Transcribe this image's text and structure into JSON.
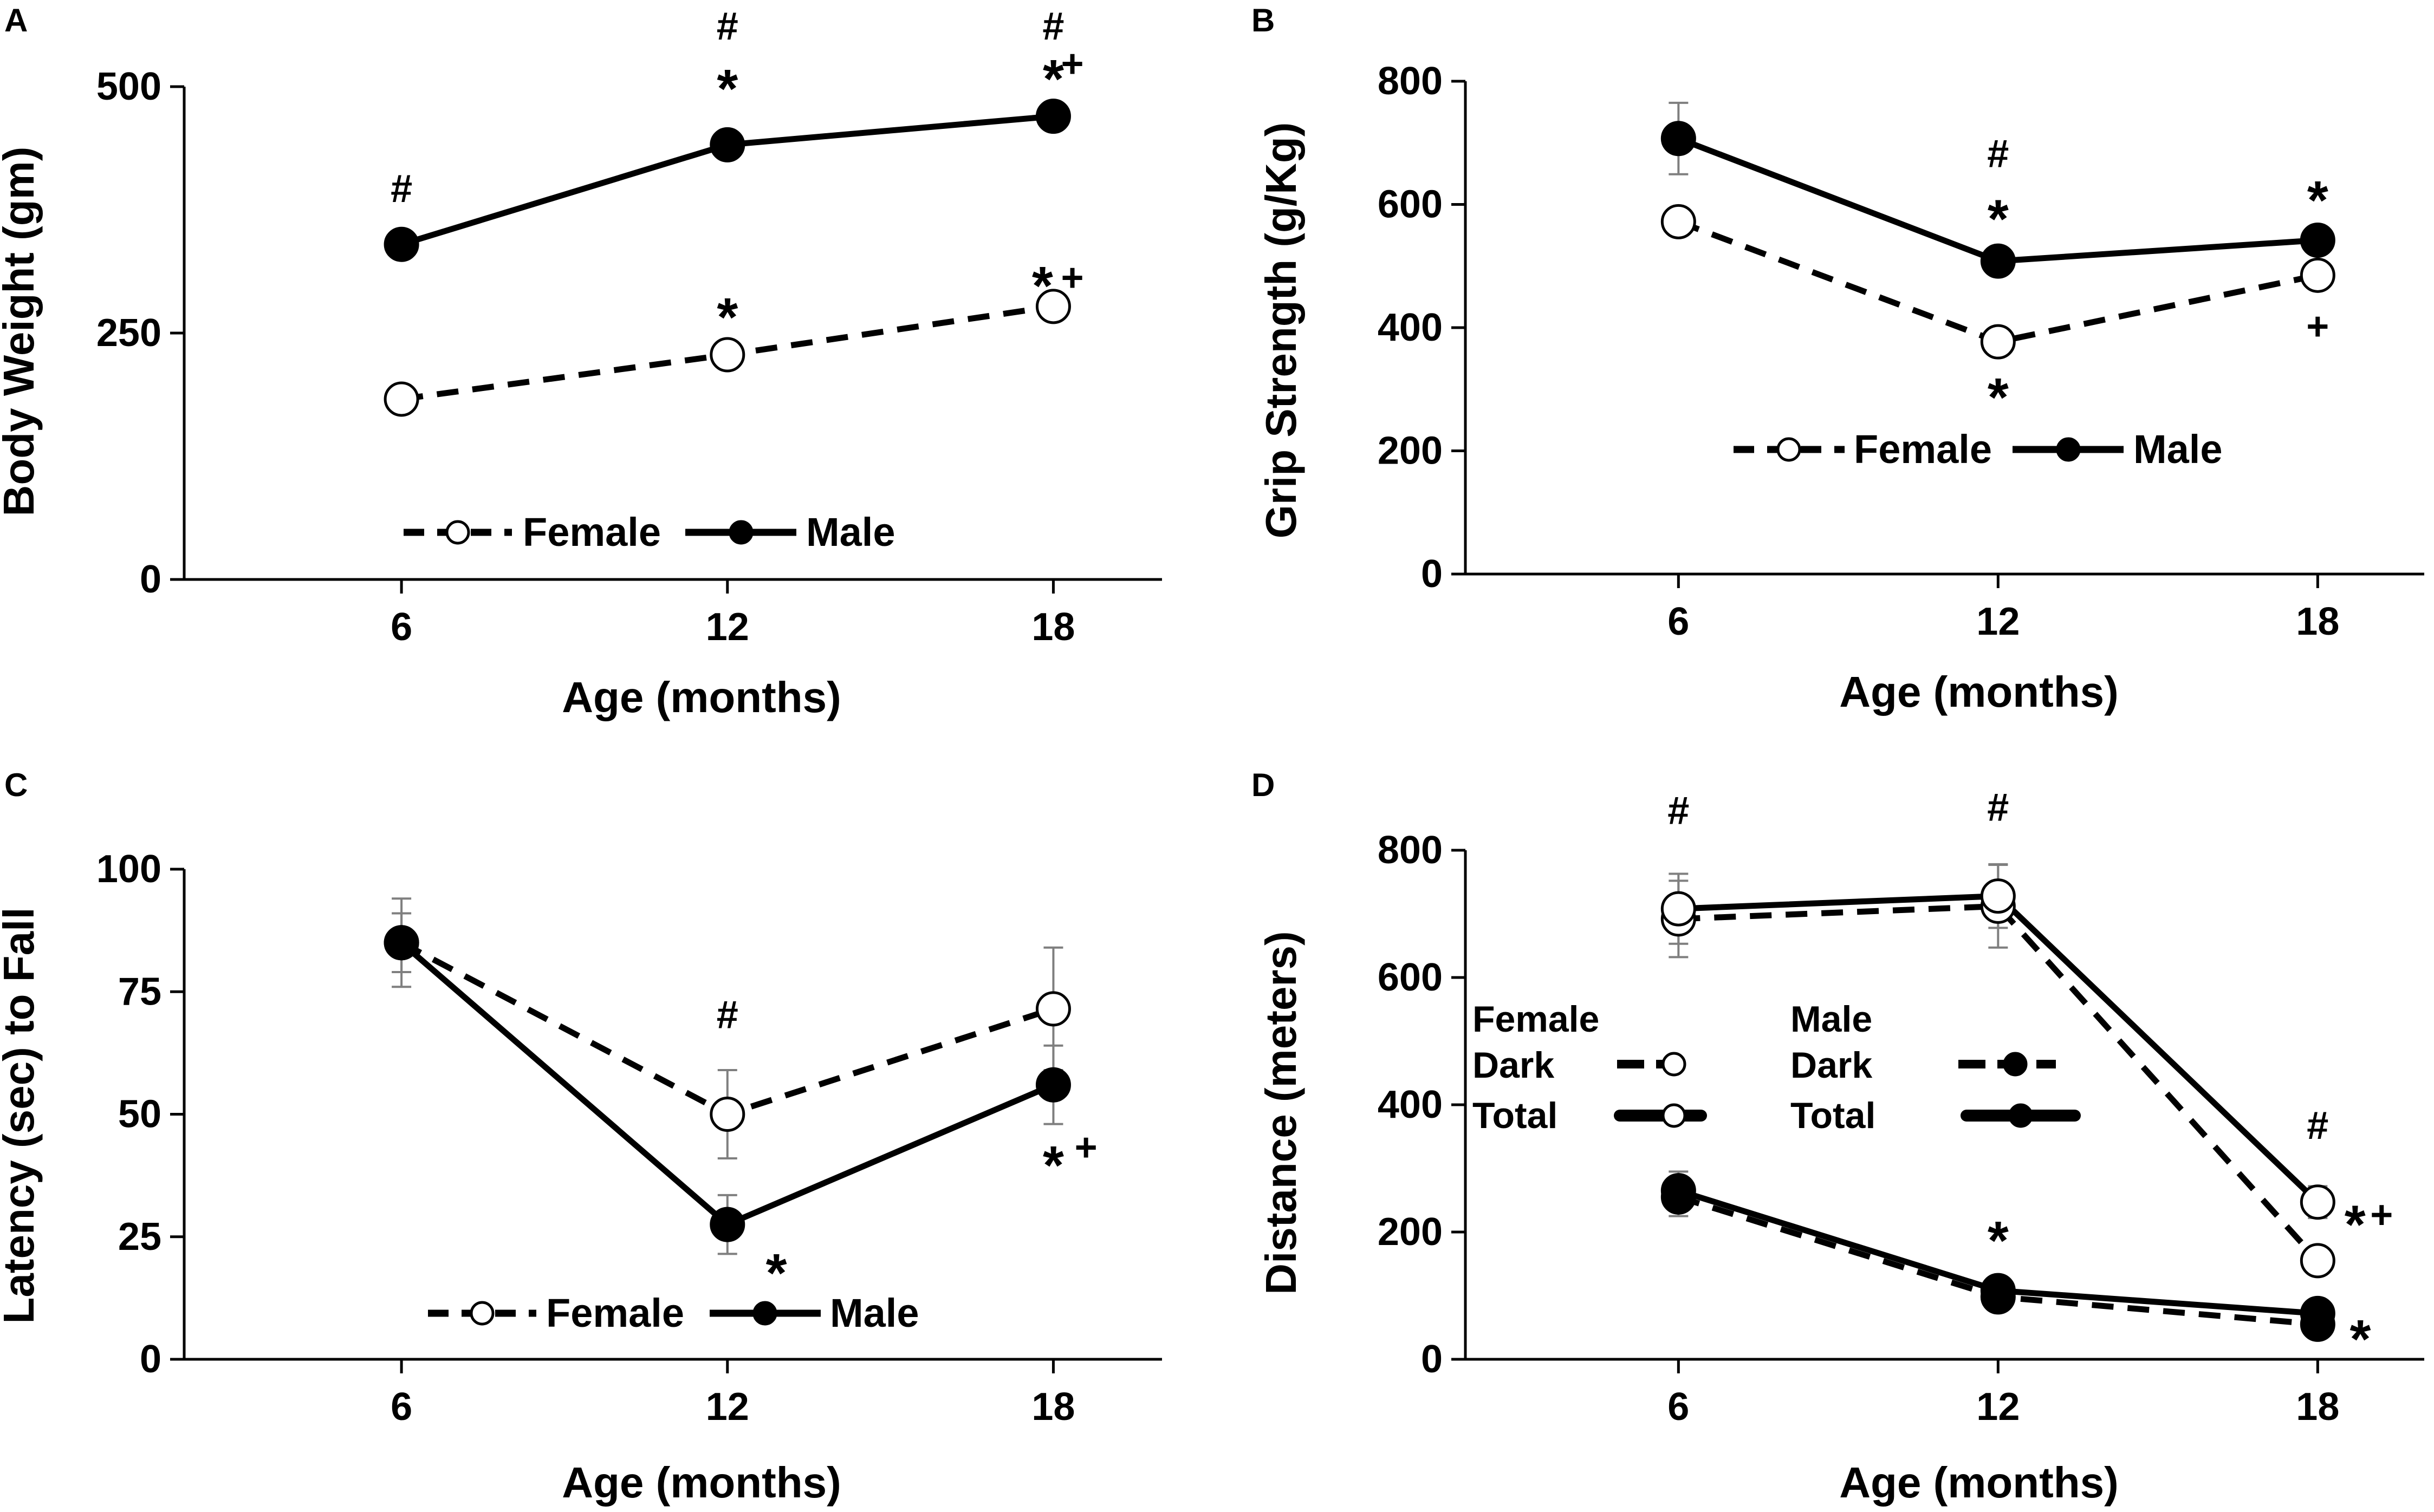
{
  "colors": {
    "ink": "#000000",
    "open_fill": "#ffffff",
    "error_bar": "#7f7f7f"
  },
  "chart_data": [
    {
      "panel": "A",
      "type": "line",
      "xlabel": "Age (months)",
      "ylabel": "Body Weight (gm)",
      "xticks": [
        6,
        12,
        18
      ],
      "yticks": [
        0,
        250,
        500
      ],
      "ylim": [
        0,
        500
      ],
      "legend": {
        "placement": "bottom-center",
        "entries": [
          "Female",
          "Male"
        ]
      },
      "series": [
        {
          "name": "Female",
          "style": "dashed",
          "marker": "open",
          "x": [
            6,
            12,
            18
          ],
          "y": [
            183,
            228,
            277
          ],
          "err": [
            0,
            0,
            0
          ]
        },
        {
          "name": "Male",
          "style": "solid",
          "marker": "filled",
          "x": [
            6,
            12,
            18
          ],
          "y": [
            340,
            441,
            470
          ],
          "err": [
            0,
            0,
            0
          ]
        }
      ],
      "annotations": [
        {
          "x": 6,
          "y": 395,
          "text": "#"
        },
        {
          "x": 12,
          "y": 560,
          "text": "#"
        },
        {
          "x": 12,
          "y": 500,
          "text": "*"
        },
        {
          "x": 18,
          "y": 560,
          "text": "#"
        },
        {
          "x": 18,
          "y": 510,
          "text": "*"
        },
        {
          "x": 18.35,
          "y": 522,
          "text": "+"
        },
        {
          "x": 12,
          "y": 268,
          "text": "*"
        },
        {
          "x": 17.8,
          "y": 300,
          "text": "*"
        },
        {
          "x": 18.35,
          "y": 305,
          "text": "+"
        }
      ]
    },
    {
      "panel": "B",
      "type": "line",
      "xlabel": "Age (months)",
      "ylabel": "Grip Strength (g/Kg)",
      "xticks": [
        6,
        12,
        18
      ],
      "yticks": [
        0,
        200,
        400,
        600,
        800
      ],
      "ylim": [
        0,
        800
      ],
      "legend": {
        "placement": "bottom-center",
        "entries": [
          "Female",
          "Male"
        ]
      },
      "series": [
        {
          "name": "Female",
          "style": "dashed",
          "marker": "open",
          "x": [
            6,
            12,
            18
          ],
          "y": [
            572,
            377,
            485
          ],
          "err": [
            0,
            0,
            0
          ]
        },
        {
          "name": "Male",
          "style": "solid",
          "marker": "filled",
          "x": [
            6,
            12,
            18
          ],
          "y": [
            707,
            508,
            542
          ],
          "err": [
            58,
            0,
            0
          ]
        }
      ],
      "annotations": [
        {
          "x": 12,
          "y": 680,
          "text": "#"
        },
        {
          "x": 12,
          "y": 580,
          "text": "*"
        },
        {
          "x": 18,
          "y": 610,
          "text": "*"
        },
        {
          "x": 12,
          "y": 290,
          "text": "*"
        },
        {
          "x": 18,
          "y": 400,
          "text": "+"
        }
      ]
    },
    {
      "panel": "C",
      "type": "line",
      "xlabel": "Age (months)",
      "ylabel": "Latency (sec) to Fall",
      "xticks": [
        6,
        12,
        18
      ],
      "yticks": [
        0,
        25,
        50,
        75,
        100
      ],
      "ylim": [
        0,
        100
      ],
      "legend": {
        "placement": "bottom-center",
        "entries": [
          "Female",
          "Male"
        ]
      },
      "series": [
        {
          "name": "Female",
          "style": "dashed",
          "marker": "open",
          "x": [
            6,
            12,
            18
          ],
          "y": [
            85,
            50,
            71.5
          ],
          "err": [
            9,
            9,
            12.5
          ]
        },
        {
          "name": "Male",
          "style": "solid",
          "marker": "filled",
          "x": [
            6,
            12,
            18
          ],
          "y": [
            85,
            27.5,
            56
          ],
          "err": [
            6,
            6,
            8
          ]
        }
      ],
      "annotations": [
        {
          "x": 12,
          "y": 70,
          "text": "#"
        },
        {
          "x": 12.9,
          "y": 18,
          "text": "*"
        },
        {
          "x": 18,
          "y": 40,
          "text": "*"
        },
        {
          "x": 18.6,
          "y": 43,
          "text": "+"
        }
      ]
    },
    {
      "panel": "D",
      "type": "line",
      "xlabel": "Age (months)",
      "ylabel": "Distance (meters)",
      "xticks": [
        6,
        12,
        18
      ],
      "yticks": [
        0,
        200,
        400,
        600,
        800
      ],
      "ylim": [
        0,
        800
      ],
      "legend": {
        "placement": "middle-left",
        "headers": [
          "Female",
          "Male"
        ],
        "rows": [
          "Dark",
          "Total"
        ]
      },
      "series": [
        {
          "name": "Female Dark",
          "style": "dashed",
          "marker": "open",
          "x": [
            6,
            12,
            18
          ],
          "y": [
            692,
            712,
            155
          ],
          "err": [
            60,
            65,
            0
          ]
        },
        {
          "name": "Female Total",
          "style": "solid",
          "marker": "open",
          "x": [
            6,
            12,
            18
          ],
          "y": [
            708,
            728,
            247
          ],
          "err": [
            55,
            50,
            25
          ]
        },
        {
          "name": "Male Dark",
          "style": "dashed",
          "marker": "filled",
          "x": [
            6,
            12,
            18
          ],
          "y": [
            255,
            98,
            55
          ],
          "err": [
            30,
            0,
            0
          ]
        },
        {
          "name": "Male Total",
          "style": "solid",
          "marker": "filled",
          "x": [
            6,
            12,
            18
          ],
          "y": [
            265,
            108,
            72
          ],
          "err": [
            30,
            0,
            0
          ]
        }
      ],
      "annotations": [
        {
          "x": 6,
          "y": 860,
          "text": "#"
        },
        {
          "x": 12,
          "y": 865,
          "text": "#"
        },
        {
          "x": 18,
          "y": 365,
          "text": "#"
        },
        {
          "x": 18.7,
          "y": 215,
          "text": "*"
        },
        {
          "x": 19.2,
          "y": 225,
          "text": "+"
        },
        {
          "x": 12,
          "y": 190,
          "text": "*"
        },
        {
          "x": 18.8,
          "y": 35,
          "text": "*"
        }
      ]
    }
  ]
}
